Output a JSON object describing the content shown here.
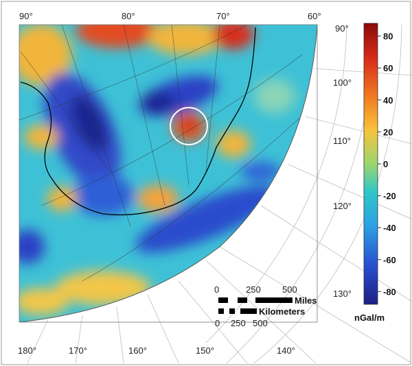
{
  "map": {
    "longitude_labels_top": [
      "90°",
      "80°",
      "70°",
      "60°"
    ],
    "longitude_labels_bottom": [
      "180°",
      "170°",
      "160°",
      "150°",
      "140°"
    ],
    "latitude_labels_right": [
      "90°",
      "100°",
      "110°",
      "120°",
      "130°"
    ],
    "colors": {
      "background_sea": "#3ec1d6",
      "negative_anomaly": "#2b3fc4",
      "positive_anomaly": "#e34b24",
      "coastline": "#000000",
      "highlight_circle": "#ffffff",
      "grid_lines": "#333333"
    }
  },
  "colorbar": {
    "ticks": [
      "80",
      "60",
      "40",
      "20",
      "0",
      "-20",
      "-40",
      "-60",
      "-80"
    ],
    "unit": "nGal/m",
    "range": [
      -88,
      88
    ],
    "colors": [
      "#8a0a0a",
      "#d62a18",
      "#f07a22",
      "#f8c33a",
      "#9bd66e",
      "#2fc6c9",
      "#2da1e4",
      "#2a4fd0",
      "#1c1f86"
    ]
  },
  "scale_bar": {
    "miles_ticks": [
      "0",
      "250",
      "500"
    ],
    "miles_label": "Miles",
    "km_label": "Kilometers",
    "km_ticks": [
      "0",
      "250",
      "500"
    ]
  }
}
